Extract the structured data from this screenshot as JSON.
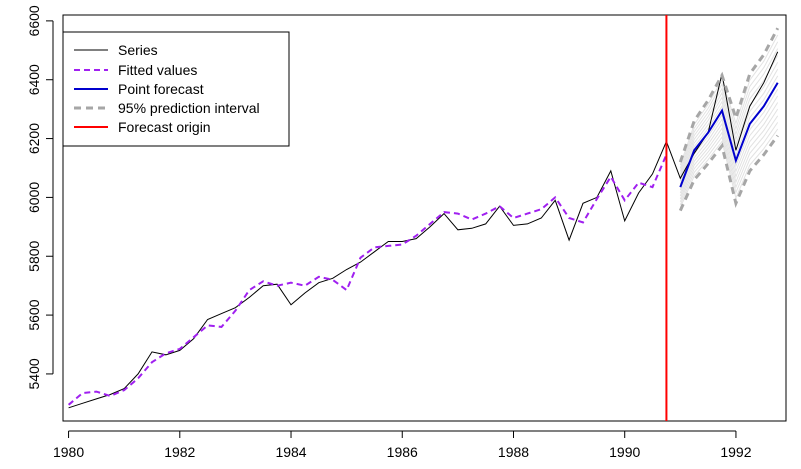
{
  "chart_data": {
    "type": "line",
    "title": "",
    "xlabel": "",
    "ylabel": "",
    "xlim": [
      1979.9,
      1992.9
    ],
    "ylim": [
      5240,
      6620
    ],
    "xticks": [
      1980,
      1982,
      1984,
      1986,
      1988,
      1990,
      1992
    ],
    "yticks": [
      5400,
      5600,
      5800,
      6000,
      6200,
      6400,
      6600
    ],
    "xtick_labels": [
      "1980",
      "1982",
      "1984",
      "1986",
      "1988",
      "1990",
      "1992"
    ],
    "ytick_labels": [
      "5400",
      "5600",
      "5800",
      "6000",
      "6200",
      "6400",
      "6600"
    ],
    "grid": false,
    "legend_position": "top-left",
    "legend": [
      "Series",
      "Fitted values",
      "Point forecast",
      "95% prediction interval",
      "Forecast origin"
    ],
    "forecast_origin": 1990.75,
    "colors": {
      "series": "#000000",
      "fitted": "#a020f0",
      "forecast": "#0000cd",
      "interval": "#a6a6a6",
      "fan": "#e2e2e2",
      "origin": "#ff0000"
    },
    "series": [
      {
        "name": "Series",
        "x": [
          1980.0,
          1980.25,
          1980.5,
          1980.75,
          1981.0,
          1981.25,
          1981.5,
          1981.75,
          1982.0,
          1982.25,
          1982.5,
          1982.75,
          1983.0,
          1983.25,
          1983.5,
          1983.75,
          1984.0,
          1984.25,
          1984.5,
          1984.75,
          1985.0,
          1985.25,
          1985.5,
          1985.75,
          1986.0,
          1986.25,
          1986.5,
          1986.75,
          1987.0,
          1987.25,
          1987.5,
          1987.75,
          1988.0,
          1988.25,
          1988.5,
          1988.75,
          1989.0,
          1989.25,
          1989.5,
          1989.75,
          1990.0,
          1990.25,
          1990.5,
          1990.75,
          1991.0,
          1991.25,
          1991.5,
          1991.75,
          1992.0,
          1992.25,
          1992.5,
          1992.75
        ],
        "values": [
          5285,
          5300,
          5315,
          5330,
          5350,
          5400,
          5475,
          5465,
          5480,
          5520,
          5585,
          5605,
          5625,
          5660,
          5700,
          5705,
          5635,
          5675,
          5710,
          5725,
          5755,
          5780,
          5815,
          5850,
          5850,
          5860,
          5900,
          5945,
          5890,
          5895,
          5910,
          5970,
          5905,
          5910,
          5930,
          5990,
          5855,
          5980,
          6000,
          6090,
          5920,
          6015,
          6080,
          6190,
          6065,
          6150,
          6220,
          6420,
          6160,
          6310,
          6390,
          6495
        ]
      },
      {
        "name": "Fitted values",
        "x": [
          1980.0,
          1980.25,
          1980.5,
          1980.75,
          1981.0,
          1981.25,
          1981.5,
          1981.75,
          1982.0,
          1982.25,
          1982.5,
          1982.75,
          1983.0,
          1983.25,
          1983.5,
          1983.75,
          1984.0,
          1984.25,
          1984.5,
          1984.75,
          1985.0,
          1985.25,
          1985.5,
          1985.75,
          1986.0,
          1986.25,
          1986.5,
          1986.75,
          1987.0,
          1987.25,
          1987.5,
          1987.75,
          1988.0,
          1988.25,
          1988.5,
          1988.75,
          1989.0,
          1989.25,
          1989.5,
          1989.75,
          1990.0,
          1990.25,
          1990.5,
          1990.75
        ],
        "values": [
          5295,
          5335,
          5340,
          5325,
          5345,
          5385,
          5440,
          5470,
          5485,
          5525,
          5565,
          5560,
          5615,
          5685,
          5715,
          5700,
          5710,
          5700,
          5730,
          5720,
          5685,
          5795,
          5830,
          5835,
          5840,
          5870,
          5910,
          5950,
          5945,
          5925,
          5945,
          5970,
          5930,
          5945,
          5960,
          6000,
          5930,
          5915,
          5995,
          6070,
          5990,
          6050,
          6035,
          6145
        ]
      },
      {
        "name": "Point forecast",
        "x": [
          1991.0,
          1991.25,
          1991.5,
          1991.75,
          1992.0,
          1992.25,
          1992.5,
          1992.75
        ],
        "values": [
          6035,
          6160,
          6220,
          6295,
          6125,
          6250,
          6310,
          6390
        ]
      },
      {
        "name": "95% prediction interval",
        "x": [
          1991.0,
          1991.25,
          1991.5,
          1991.75,
          1992.0,
          1992.25,
          1992.5,
          1992.75
        ],
        "lower": [
          5955,
          6060,
          6115,
          6175,
          5980,
          6090,
          6145,
          6210
        ],
        "upper": [
          6120,
          6260,
          6330,
          6415,
          6270,
          6420,
          6485,
          6575
        ]
      }
    ]
  }
}
